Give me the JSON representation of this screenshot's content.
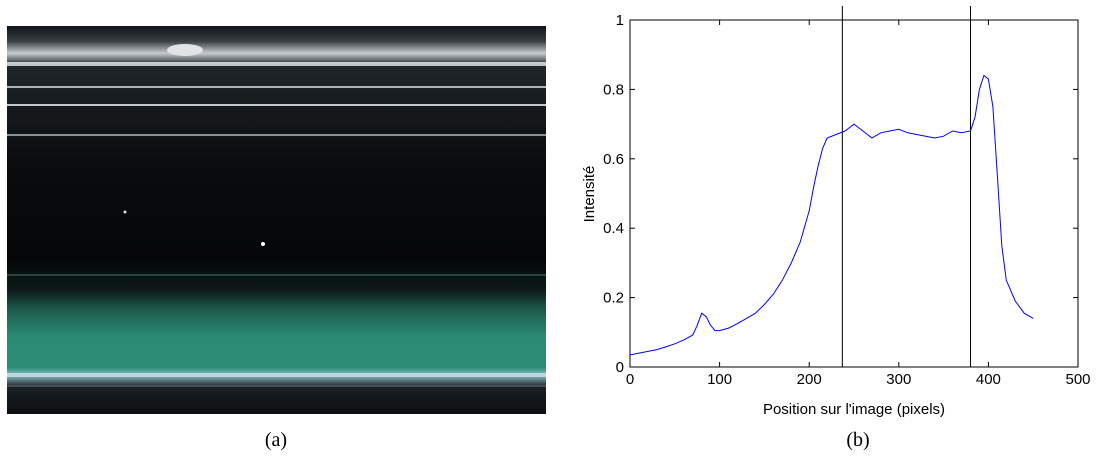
{
  "chart_data": {
    "type": "line",
    "xlabel": "Position sur l'image (pixels)",
    "ylabel": "Intensité",
    "xlim": [
      0,
      500
    ],
    "ylim": [
      0,
      1
    ],
    "xticks": [
      0,
      100,
      200,
      300,
      400,
      500
    ],
    "yticks": [
      0,
      0.2,
      0.4,
      0.6,
      0.8,
      1
    ],
    "vlines": [
      237,
      380
    ],
    "color": "#0000ff",
    "x": [
      0,
      10,
      20,
      30,
      40,
      50,
      60,
      70,
      75,
      80,
      85,
      90,
      95,
      100,
      110,
      120,
      130,
      140,
      150,
      160,
      170,
      180,
      190,
      200,
      205,
      210,
      215,
      220,
      230,
      240,
      245,
      250,
      255,
      260,
      270,
      280,
      290,
      300,
      310,
      320,
      330,
      340,
      350,
      360,
      370,
      380,
      385,
      390,
      395,
      400,
      405,
      410,
      415,
      420,
      430,
      440,
      450
    ],
    "values": [
      0.035,
      0.04,
      0.045,
      0.05,
      0.058,
      0.067,
      0.078,
      0.092,
      0.12,
      0.155,
      0.145,
      0.12,
      0.105,
      0.105,
      0.112,
      0.125,
      0.14,
      0.155,
      0.18,
      0.21,
      0.25,
      0.3,
      0.36,
      0.45,
      0.52,
      0.58,
      0.63,
      0.66,
      0.67,
      0.68,
      0.69,
      0.7,
      0.69,
      0.68,
      0.66,
      0.675,
      0.68,
      0.685,
      0.675,
      0.67,
      0.665,
      0.66,
      0.665,
      0.68,
      0.675,
      0.68,
      0.72,
      0.8,
      0.84,
      0.83,
      0.75,
      0.55,
      0.35,
      0.25,
      0.19,
      0.155,
      0.14
    ]
  },
  "captions": [
    "(a)",
    "(b)"
  ]
}
